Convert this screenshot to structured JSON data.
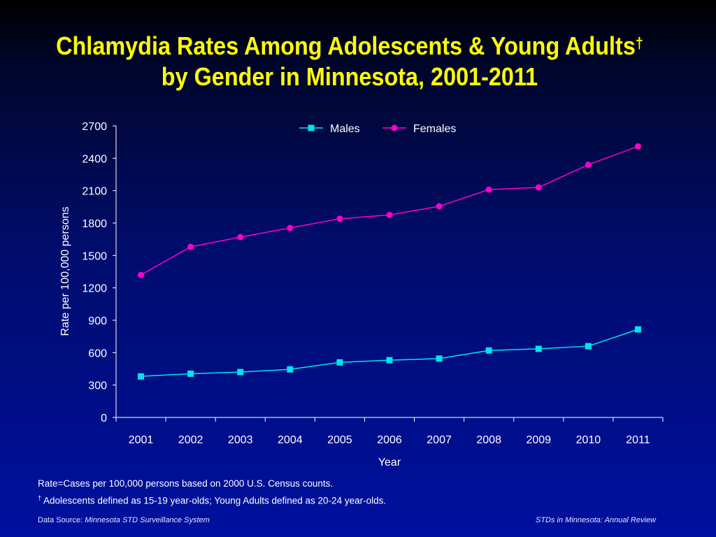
{
  "slide": {
    "title_line1": "Chlamydia Rates Among Adolescents & Young Adults",
    "title_dagger": "†",
    "title_line2": "by Gender in Minnesota, 2001-2011",
    "note_rate": "Rate=Cases per 100,000 persons based on 2000 U.S. Census counts.",
    "note_dagger": "†",
    "note_def": " Adolescents defined as 15-19 year-olds; Young Adults defined as 20-24 year-olds.",
    "source_label": "Data Source: ",
    "source_name": "Minnesota STD Surveillance System",
    "footer_right": "STDs in Minnesota: Annual Review"
  },
  "colors": {
    "title": "#ffff00",
    "males": "#00e5ee",
    "females": "#ff00cc",
    "axis": "#ffffff"
  },
  "chart_data": {
    "type": "line",
    "title": "Chlamydia Rates Among Adolescents & Young Adults† by Gender in Minnesota, 2001-2011",
    "xlabel": "Year",
    "ylabel": "Rate per 100,000 persons",
    "categories": [
      "2001",
      "2002",
      "2003",
      "2004",
      "2005",
      "2006",
      "2007",
      "2008",
      "2009",
      "2010",
      "2011"
    ],
    "ylim": [
      0,
      2700
    ],
    "yticks": [
      0,
      300,
      600,
      900,
      1200,
      1500,
      1800,
      2100,
      2400,
      2700
    ],
    "ytick_labels": [
      "0",
      "300",
      "600",
      "900",
      "1200",
      "1500",
      "1800",
      "2100",
      "2400",
      "2700"
    ],
    "grid": false,
    "legend_position": "top-center",
    "series": [
      {
        "name": "Males",
        "marker": "square",
        "color": "#00e5ee",
        "values": [
          380,
          405,
          420,
          445,
          510,
          530,
          545,
          620,
          635,
          660,
          815
        ]
      },
      {
        "name": "Females",
        "marker": "circle",
        "color": "#ff00cc",
        "values": [
          1320,
          1580,
          1670,
          1755,
          1840,
          1875,
          1955,
          2110,
          2130,
          2340,
          2510
        ]
      }
    ]
  }
}
